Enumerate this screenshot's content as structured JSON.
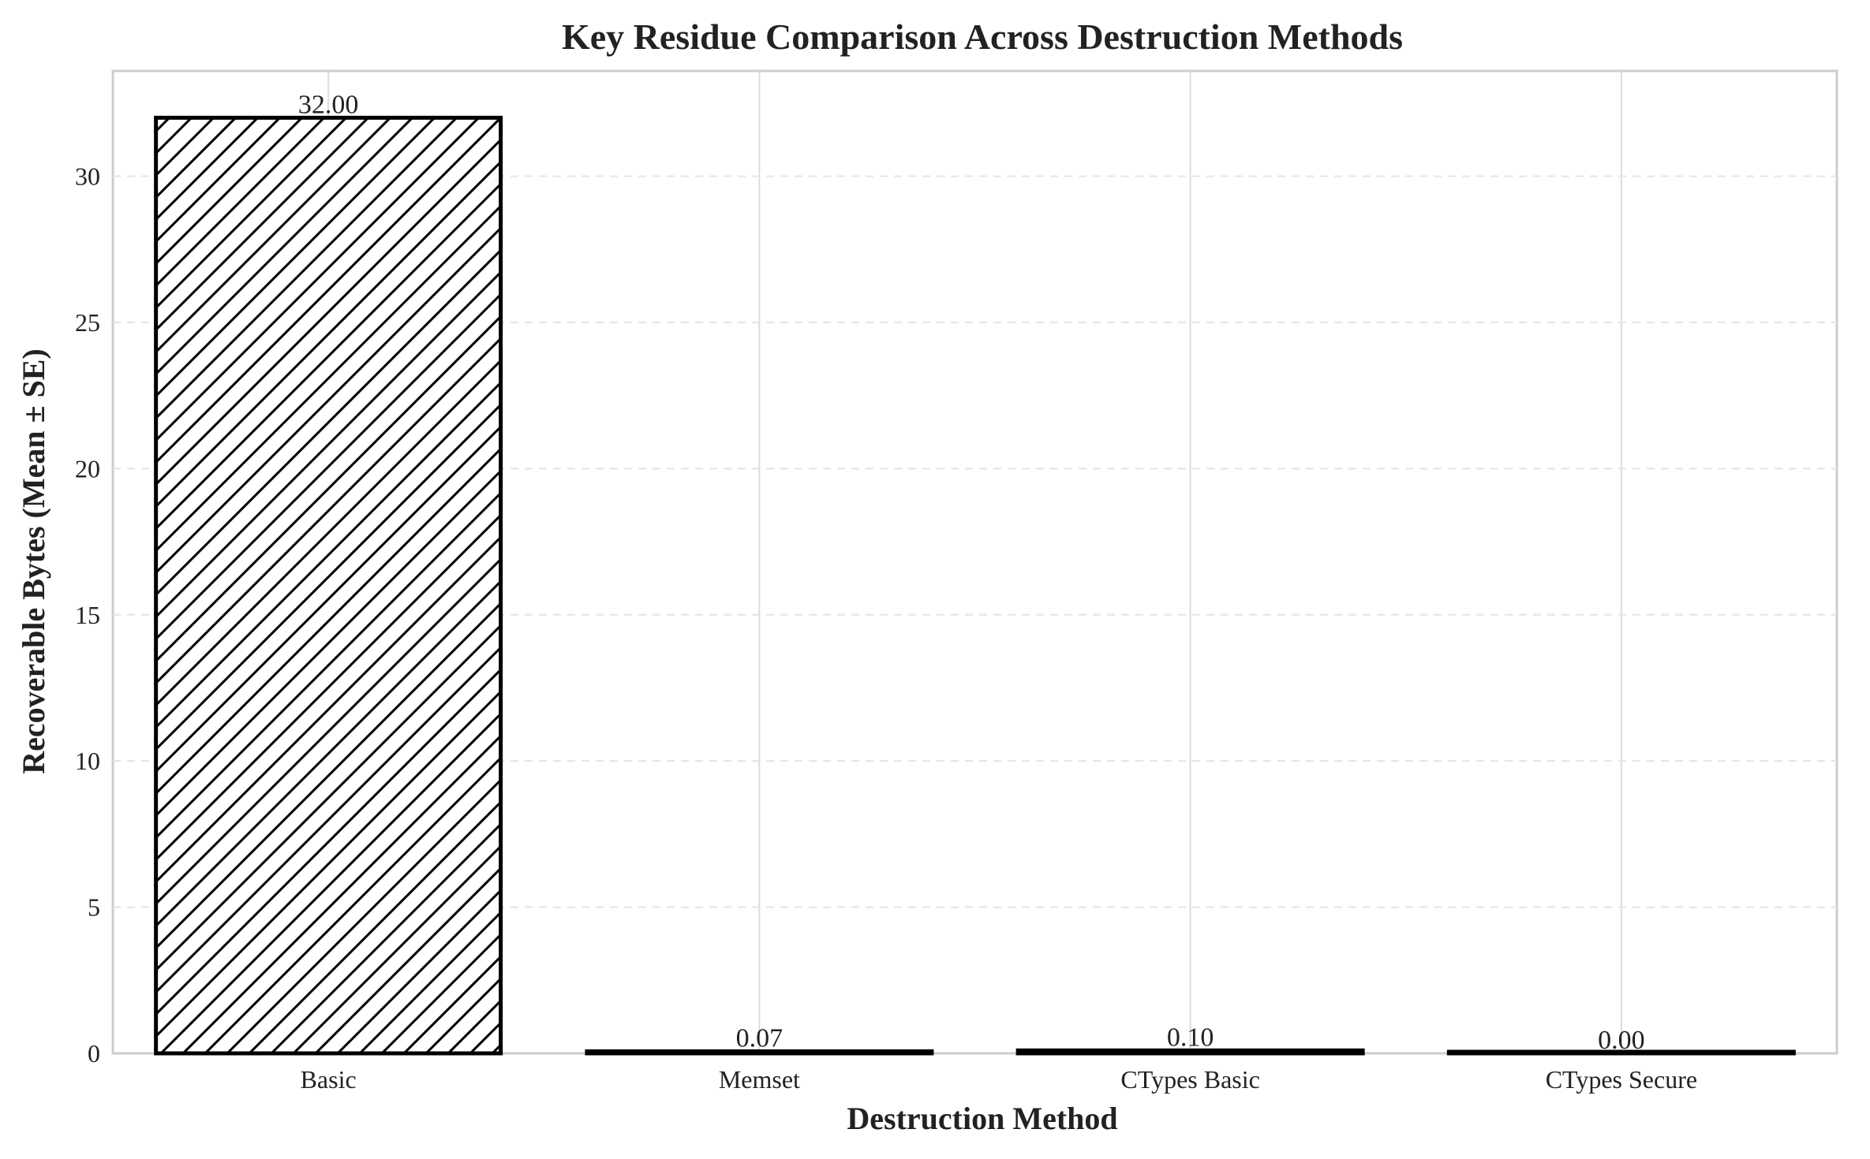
{
  "chart_data": {
    "type": "bar",
    "title": "Key Residue Comparison Across Destruction Methods",
    "xlabel": "Destruction Method",
    "ylabel": "Recoverable Bytes (Mean ± SE)",
    "categories": [
      "Basic",
      "Memset",
      "CTypes Basic",
      "CTypes Secure"
    ],
    "values": [
      32.0,
      0.07,
      0.1,
      0.0
    ],
    "value_labels": [
      "32.00",
      "0.07",
      "0.10",
      "0.00"
    ],
    "ylim": [
      0,
      33.6
    ],
    "yticks": [
      0,
      5,
      10,
      15,
      20,
      25,
      30
    ],
    "grid": true,
    "bar_style": "hatched, white fill, black edge",
    "colors": {
      "edge": "#000000",
      "fill": "#ffffff",
      "grid": "#dddddd",
      "frame": "#cccccc",
      "text": "#222222"
    }
  }
}
